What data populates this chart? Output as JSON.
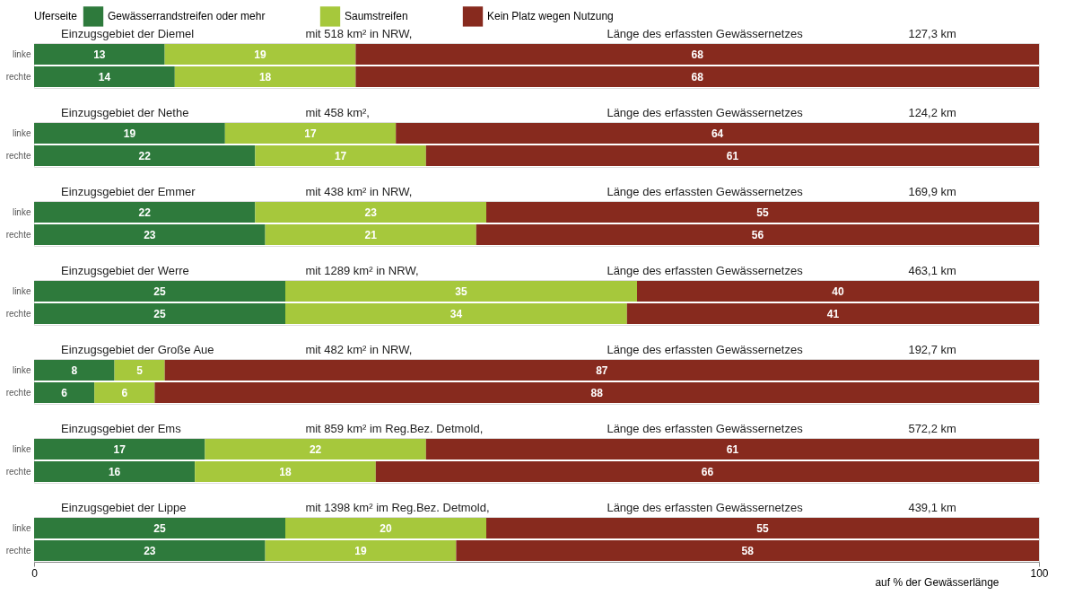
{
  "chart_data": [
    {
      "type": "bar",
      "orientation": "horizontal",
      "stacked": true,
      "legend": "top",
      "legend_title": "Uferseite",
      "title": "Einzugsgebiet der Diemel",
      "annotations": [
        "mit 518 km² in NRW,",
        "Länge des erfassten Gewässernetzes",
        "127,3 km"
      ],
      "categories": [
        "linke",
        "rechte"
      ],
      "xlim": [
        0,
        100
      ],
      "tick_labels": "y",
      "data_labels": true,
      "series": [
        {
          "name": "Gewässerrandstreifen oder mehr",
          "color": "#2e7a3c",
          "values": [
            13,
            14
          ]
        },
        {
          "name": "Saumstreifen",
          "color": "#a6c83c",
          "values": [
            19,
            18
          ]
        },
        {
          "name": "Kein Platz wegen Nutzung",
          "color": "#872a1e",
          "values": [
            68,
            68
          ]
        }
      ]
    },
    {
      "type": "bar",
      "orientation": "horizontal",
      "stacked": true,
      "title": "Einzugsgebiet der Nethe",
      "annotations": [
        "mit 458 km²,",
        "Länge des erfassten Gewässernetzes",
        "124,2 km"
      ],
      "categories": [
        "linke",
        "rechte"
      ],
      "xlim": [
        0,
        100
      ],
      "tick_labels": "y",
      "data_labels": true,
      "series": [
        {
          "color": "#2e7a3c",
          "values": [
            19,
            22
          ]
        },
        {
          "color": "#a6c83c",
          "values": [
            17,
            17
          ]
        },
        {
          "color": "#872a1e",
          "values": [
            64,
            61
          ]
        }
      ]
    },
    {
      "type": "bar",
      "orientation": "horizontal",
      "stacked": true,
      "title": "Einzugsgebiet der Emmer",
      "annotations": [
        "mit 438 km² in NRW,",
        "Länge des erfassten Gewässernetzes",
        "169,9 km"
      ],
      "categories": [
        "linke",
        "rechte"
      ],
      "xlim": [
        0,
        100
      ],
      "tick_labels": "y",
      "data_labels": true,
      "series": [
        {
          "color": "#2e7a3c",
          "values": [
            22,
            23
          ]
        },
        {
          "color": "#a6c83c",
          "values": [
            23,
            21
          ]
        },
        {
          "color": "#872a1e",
          "values": [
            55,
            56
          ]
        }
      ]
    },
    {
      "type": "bar",
      "orientation": "horizontal",
      "stacked": true,
      "title": "Einzugsgebiet der Werre",
      "annotations": [
        "mit 1289 km² in NRW,",
        "Länge des erfassten Gewässernetzes",
        "463,1 km"
      ],
      "categories": [
        "linke",
        "rechte"
      ],
      "xlim": [
        0,
        100
      ],
      "tick_labels": "y",
      "data_labels": true,
      "series": [
        {
          "color": "#2e7a3c",
          "values": [
            25,
            25
          ]
        },
        {
          "color": "#a6c83c",
          "values": [
            35,
            34
          ]
        },
        {
          "color": "#872a1e",
          "values": [
            40,
            41
          ]
        }
      ]
    },
    {
      "type": "bar",
      "orientation": "horizontal",
      "stacked": true,
      "title": "Einzugsgebiet der Große Aue",
      "annotations": [
        "mit 482 km² in NRW,",
        "Länge des erfassten Gewässernetzes",
        "192,7 km"
      ],
      "categories": [
        "linke",
        "rechte"
      ],
      "xlim": [
        0,
        100
      ],
      "tick_labels": "y",
      "data_labels": true,
      "series": [
        {
          "color": "#2e7a3c",
          "values": [
            8,
            6
          ]
        },
        {
          "color": "#a6c83c",
          "values": [
            5,
            6
          ]
        },
        {
          "color": "#872a1e",
          "values": [
            87,
            88
          ]
        }
      ]
    },
    {
      "type": "bar",
      "orientation": "horizontal",
      "stacked": true,
      "title": "Einzugsgebiet der Ems",
      "annotations": [
        "mit 859 km² im Reg.Bez. Detmold,",
        "Länge des erfassten Gewässernetzes",
        "572,2 km"
      ],
      "categories": [
        "linke",
        "rechte"
      ],
      "xlim": [
        0,
        100
      ],
      "tick_labels": "y",
      "data_labels": true,
      "series": [
        {
          "color": "#2e7a3c",
          "values": [
            17,
            16
          ]
        },
        {
          "color": "#a6c83c",
          "values": [
            22,
            18
          ]
        },
        {
          "color": "#872a1e",
          "values": [
            61,
            66
          ]
        }
      ]
    },
    {
      "type": "bar",
      "orientation": "horizontal",
      "stacked": true,
      "title": "Einzugsgebiet der Lippe",
      "annotations": [
        "mit 1398 km² im Reg.Bez. Detmold,",
        "Länge des erfassten Gewässernetzes",
        "439,1 km"
      ],
      "categories": [
        "linke",
        "rechte"
      ],
      "xlim": [
        0,
        100
      ],
      "xticks": [
        0,
        100
      ],
      "xlabel": "auf % der Gewässerlänge",
      "data_labels": true,
      "series": [
        {
          "color": "#2e7a3c",
          "values": [
            25,
            23
          ]
        },
        {
          "color": "#a6c83c",
          "values": [
            20,
            19
          ]
        },
        {
          "color": "#872a1e",
          "values": [
            55,
            58
          ]
        }
      ]
    }
  ]
}
